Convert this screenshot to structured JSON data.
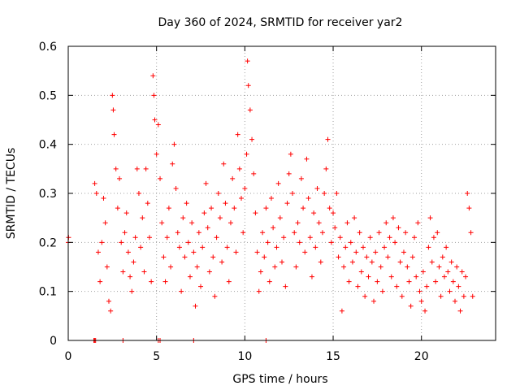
{
  "chart_data": {
    "type": "scatter",
    "title": "Day 360 of 2024, SRMTID for receiver yar2",
    "xlabel": "GPS time / hours",
    "ylabel": "SRMTID / TECUs",
    "xlim": [
      0,
      24.2
    ],
    "ylim": [
      0,
      0.6
    ],
    "grid": true,
    "marker": "+",
    "series_color": "#ff0000",
    "x_ticks": [
      {
        "value": 0,
        "label": "0"
      },
      {
        "value": 5,
        "label": "5"
      },
      {
        "value": 10,
        "label": "10"
      },
      {
        "value": 15,
        "label": "15"
      },
      {
        "value": 20,
        "label": "20"
      }
    ],
    "y_ticks": [
      {
        "value": 0,
        "label": "0"
      },
      {
        "value": 0.1,
        "label": "0.1"
      },
      {
        "value": 0.2,
        "label": "0.2"
      },
      {
        "value": 0.3,
        "label": "0.3"
      },
      {
        "value": 0.4,
        "label": "0.4"
      },
      {
        "value": 0.5,
        "label": "0.5"
      },
      {
        "value": 0.6,
        "label": "0.6"
      }
    ],
    "series": [
      {
        "name": "SRMTID",
        "points": [
          [
            0.0,
            0.2
          ],
          [
            0.02,
            0.21
          ],
          [
            1.45,
            0.0
          ],
          [
            1.5,
            0.0
          ],
          [
            1.55,
            0.0
          ],
          [
            3.1,
            0.0
          ],
          [
            5.1,
            0.0
          ],
          [
            5.2,
            0.0
          ],
          [
            7.1,
            0.0
          ],
          [
            11.2,
            0.0
          ],
          [
            1.5,
            0.32
          ],
          [
            1.6,
            0.3
          ],
          [
            1.7,
            0.18
          ],
          [
            1.8,
            0.12
          ],
          [
            1.9,
            0.2
          ],
          [
            2.0,
            0.29
          ],
          [
            2.1,
            0.24
          ],
          [
            2.2,
            0.15
          ],
          [
            2.3,
            0.08
          ],
          [
            2.4,
            0.06
          ],
          [
            2.5,
            0.5
          ],
          [
            2.55,
            0.47
          ],
          [
            2.6,
            0.42
          ],
          [
            2.7,
            0.35
          ],
          [
            2.8,
            0.27
          ],
          [
            2.9,
            0.33
          ],
          [
            3.0,
            0.2
          ],
          [
            3.1,
            0.14
          ],
          [
            3.2,
            0.22
          ],
          [
            3.3,
            0.26
          ],
          [
            3.4,
            0.18
          ],
          [
            3.5,
            0.13
          ],
          [
            3.6,
            0.1
          ],
          [
            3.7,
            0.16
          ],
          [
            3.8,
            0.21
          ],
          [
            3.9,
            0.35
          ],
          [
            4.0,
            0.3
          ],
          [
            4.1,
            0.19
          ],
          [
            4.2,
            0.25
          ],
          [
            4.3,
            0.14
          ],
          [
            4.4,
            0.35
          ],
          [
            4.5,
            0.28
          ],
          [
            4.6,
            0.21
          ],
          [
            4.7,
            0.12
          ],
          [
            4.8,
            0.54
          ],
          [
            4.85,
            0.5
          ],
          [
            4.9,
            0.45
          ],
          [
            5.0,
            0.38
          ],
          [
            5.1,
            0.44
          ],
          [
            5.2,
            0.33
          ],
          [
            5.3,
            0.24
          ],
          [
            5.4,
            0.17
          ],
          [
            5.5,
            0.12
          ],
          [
            5.6,
            0.21
          ],
          [
            5.7,
            0.27
          ],
          [
            5.8,
            0.15
          ],
          [
            5.9,
            0.36
          ],
          [
            6.0,
            0.4
          ],
          [
            6.1,
            0.31
          ],
          [
            6.2,
            0.22
          ],
          [
            6.3,
            0.19
          ],
          [
            6.4,
            0.1
          ],
          [
            6.5,
            0.25
          ],
          [
            6.6,
            0.17
          ],
          [
            6.7,
            0.28
          ],
          [
            6.8,
            0.2
          ],
          [
            6.9,
            0.13
          ],
          [
            7.0,
            0.24
          ],
          [
            7.1,
            0.18
          ],
          [
            7.2,
            0.07
          ],
          [
            7.3,
            0.15
          ],
          [
            7.4,
            0.22
          ],
          [
            7.5,
            0.11
          ],
          [
            7.6,
            0.19
          ],
          [
            7.7,
            0.26
          ],
          [
            7.8,
            0.32
          ],
          [
            7.9,
            0.23
          ],
          [
            8.0,
            0.14
          ],
          [
            8.1,
            0.27
          ],
          [
            8.2,
            0.17
          ],
          [
            8.3,
            0.09
          ],
          [
            8.4,
            0.21
          ],
          [
            8.5,
            0.3
          ],
          [
            8.6,
            0.25
          ],
          [
            8.7,
            0.16
          ],
          [
            8.8,
            0.36
          ],
          [
            8.9,
            0.28
          ],
          [
            9.0,
            0.19
          ],
          [
            9.1,
            0.12
          ],
          [
            9.2,
            0.24
          ],
          [
            9.3,
            0.33
          ],
          [
            9.4,
            0.27
          ],
          [
            9.5,
            0.18
          ],
          [
            9.6,
            0.42
          ],
          [
            9.7,
            0.35
          ],
          [
            9.8,
            0.29
          ],
          [
            9.9,
            0.22
          ],
          [
            10.0,
            0.31
          ],
          [
            10.1,
            0.38
          ],
          [
            10.15,
            0.57
          ],
          [
            10.2,
            0.52
          ],
          [
            10.3,
            0.47
          ],
          [
            10.4,
            0.41
          ],
          [
            10.5,
            0.34
          ],
          [
            10.6,
            0.26
          ],
          [
            10.7,
            0.18
          ],
          [
            10.8,
            0.1
          ],
          [
            10.9,
            0.14
          ],
          [
            11.0,
            0.22
          ],
          [
            11.1,
            0.17
          ],
          [
            11.2,
            0.27
          ],
          [
            11.3,
            0.2
          ],
          [
            11.4,
            0.12
          ],
          [
            11.5,
            0.29
          ],
          [
            11.6,
            0.23
          ],
          [
            11.7,
            0.15
          ],
          [
            11.8,
            0.19
          ],
          [
            11.9,
            0.32
          ],
          [
            12.0,
            0.25
          ],
          [
            12.1,
            0.16
          ],
          [
            12.2,
            0.21
          ],
          [
            12.3,
            0.11
          ],
          [
            12.4,
            0.28
          ],
          [
            12.5,
            0.34
          ],
          [
            12.6,
            0.38
          ],
          [
            12.7,
            0.3
          ],
          [
            12.8,
            0.22
          ],
          [
            12.9,
            0.15
          ],
          [
            13.0,
            0.24
          ],
          [
            13.1,
            0.2
          ],
          [
            13.2,
            0.33
          ],
          [
            13.3,
            0.27
          ],
          [
            13.4,
            0.18
          ],
          [
            13.5,
            0.37
          ],
          [
            13.6,
            0.29
          ],
          [
            13.7,
            0.21
          ],
          [
            13.8,
            0.13
          ],
          [
            13.9,
            0.26
          ],
          [
            14.0,
            0.19
          ],
          [
            14.1,
            0.31
          ],
          [
            14.2,
            0.24
          ],
          [
            14.3,
            0.16
          ],
          [
            14.4,
            0.22
          ],
          [
            14.5,
            0.3
          ],
          [
            14.6,
            0.35
          ],
          [
            14.7,
            0.41
          ],
          [
            14.8,
            0.27
          ],
          [
            14.9,
            0.2
          ],
          [
            15.0,
            0.26
          ],
          [
            15.1,
            0.23
          ],
          [
            15.2,
            0.3
          ],
          [
            15.3,
            0.17
          ],
          [
            15.4,
            0.21
          ],
          [
            15.5,
            0.06
          ],
          [
            15.6,
            0.15
          ],
          [
            15.7,
            0.19
          ],
          [
            15.8,
            0.24
          ],
          [
            15.9,
            0.12
          ],
          [
            16.0,
            0.2
          ],
          [
            16.1,
            0.16
          ],
          [
            16.2,
            0.25
          ],
          [
            16.3,
            0.18
          ],
          [
            16.4,
            0.11
          ],
          [
            16.5,
            0.22
          ],
          [
            16.6,
            0.14
          ],
          [
            16.7,
            0.19
          ],
          [
            16.8,
            0.09
          ],
          [
            16.9,
            0.17
          ],
          [
            17.0,
            0.13
          ],
          [
            17.1,
            0.21
          ],
          [
            17.2,
            0.16
          ],
          [
            17.3,
            0.08
          ],
          [
            17.4,
            0.18
          ],
          [
            17.5,
            0.12
          ],
          [
            17.6,
            0.22
          ],
          [
            17.7,
            0.15
          ],
          [
            17.8,
            0.1
          ],
          [
            17.9,
            0.19
          ],
          [
            18.0,
            0.24
          ],
          [
            18.1,
            0.17
          ],
          [
            18.2,
            0.21
          ],
          [
            18.3,
            0.13
          ],
          [
            18.4,
            0.25
          ],
          [
            18.5,
            0.2
          ],
          [
            18.6,
            0.11
          ],
          [
            18.7,
            0.23
          ],
          [
            18.8,
            0.16
          ],
          [
            18.9,
            0.09
          ],
          [
            19.0,
            0.18
          ],
          [
            19.1,
            0.22
          ],
          [
            19.2,
            0.15
          ],
          [
            19.3,
            0.12
          ],
          [
            19.4,
            0.07
          ],
          [
            19.5,
            0.17
          ],
          [
            19.6,
            0.21
          ],
          [
            19.7,
            0.13
          ],
          [
            19.8,
            0.24
          ],
          [
            19.9,
            0.1
          ],
          [
            20.0,
            0.08
          ],
          [
            20.1,
            0.14
          ],
          [
            20.2,
            0.06
          ],
          [
            20.3,
            0.11
          ],
          [
            20.4,
            0.19
          ],
          [
            20.5,
            0.25
          ],
          [
            20.6,
            0.16
          ],
          [
            20.7,
            0.21
          ],
          [
            20.8,
            0.12
          ],
          [
            20.9,
            0.22
          ],
          [
            21.0,
            0.15
          ],
          [
            21.1,
            0.09
          ],
          [
            21.2,
            0.17
          ],
          [
            21.3,
            0.13
          ],
          [
            21.4,
            0.19
          ],
          [
            21.5,
            0.14
          ],
          [
            21.6,
            0.1
          ],
          [
            21.7,
            0.16
          ],
          [
            21.8,
            0.12
          ],
          [
            21.9,
            0.08
          ],
          [
            22.0,
            0.15
          ],
          [
            22.1,
            0.11
          ],
          [
            22.2,
            0.06
          ],
          [
            22.3,
            0.14
          ],
          [
            22.4,
            0.09
          ],
          [
            22.5,
            0.13
          ],
          [
            22.6,
            0.3
          ],
          [
            22.7,
            0.27
          ],
          [
            22.8,
            0.22
          ],
          [
            22.9,
            0.09
          ]
        ]
      }
    ]
  }
}
